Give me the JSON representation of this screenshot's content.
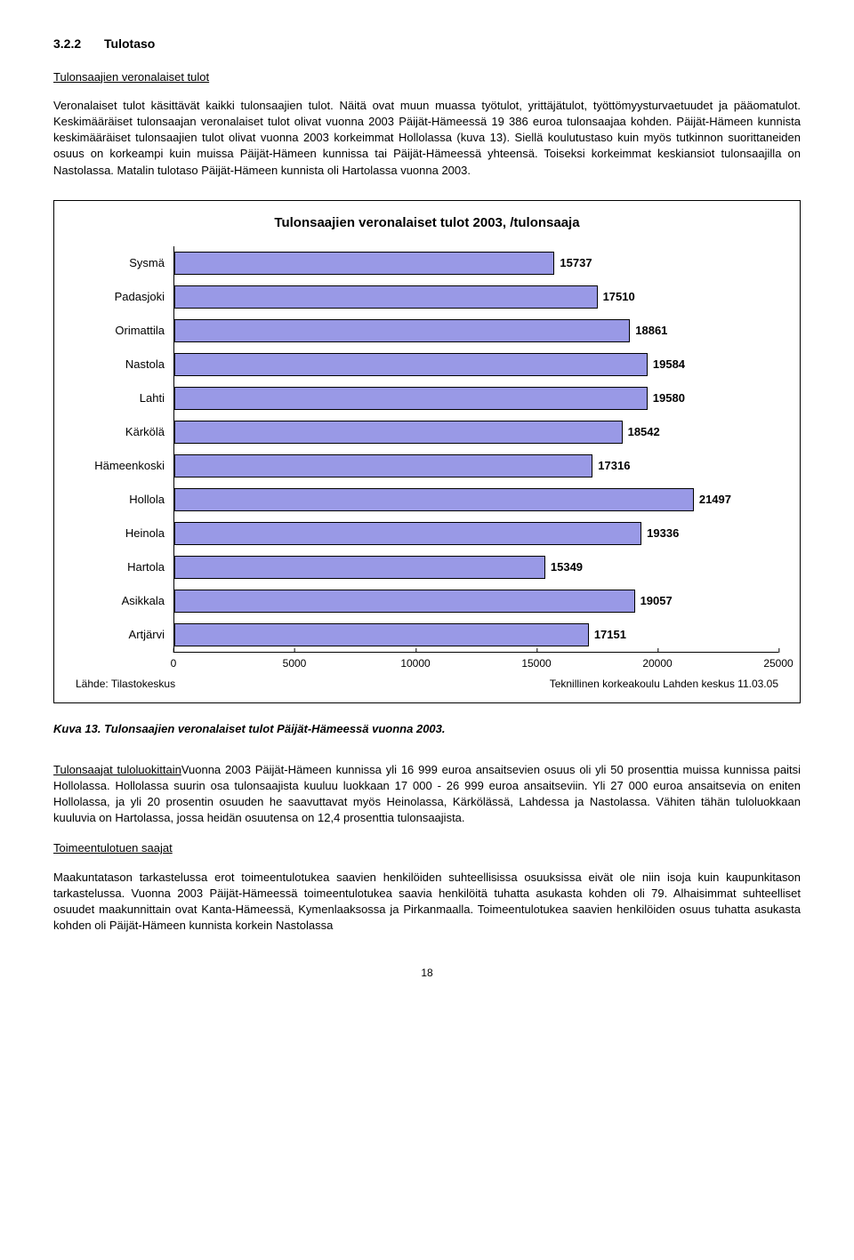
{
  "section": {
    "number": "3.2.2",
    "title": "Tulotaso"
  },
  "subheading1": "Tulonsaajien veronalaiset tulot",
  "para1": "Veronalaiset tulot käsittävät kaikki tulonsaajien tulot. Näitä ovat muun muassa työtulot, yrittäjätulot, työttömyysturvaetuudet ja pääomatulot. Keskimääräiset tulonsaajan veronalaiset tulot olivat vuonna 2003 Päijät-Hämeessä 19 386 euroa tulonsaajaa kohden. Päijät-Hämeen kunnista keskimääräiset tulonsaajien tulot olivat vuonna 2003 korkeimmat Hollolassa (kuva 13). Siellä koulutustaso kuin myös tutkinnon suorittaneiden osuus on korkeampi kuin muissa Päijät-Hämeen kunnissa tai Päijät-Hämeessä yhteensä. Toiseksi korkeimmat keskiansiot tulonsaajilla on Nastolassa. Matalin tulotaso Päijät-Hämeen kunnista oli Hartolassa vuonna 2003.",
  "chart": {
    "type": "bar",
    "title": "Tulonsaajien veronalaiset tulot 2003, /tulonsaaja",
    "bar_color": "#9999e6",
    "bar_border": "#000000",
    "background": "#ffffff",
    "xlim_max": 25000,
    "xtick_step": 5000,
    "xticks": [
      "0",
      "5000",
      "10000",
      "15000",
      "20000",
      "25000"
    ],
    "rows": [
      {
        "label": "Sysmä",
        "value": 15737
      },
      {
        "label": "Padasjoki",
        "value": 17510
      },
      {
        "label": "Orimattila",
        "value": 18861
      },
      {
        "label": "Nastola",
        "value": 19584
      },
      {
        "label": "Lahti",
        "value": 19580
      },
      {
        "label": "Kärkölä",
        "value": 18542
      },
      {
        "label": "Hämeenkoski",
        "value": 17316
      },
      {
        "label": "Hollola",
        "value": 21497
      },
      {
        "label": "Heinola",
        "value": 19336
      },
      {
        "label": "Hartola",
        "value": 15349
      },
      {
        "label": "Asikkala",
        "value": 19057
      },
      {
        "label": "Artjärvi",
        "value": 17151
      }
    ],
    "footer_left": "Lähde: Tilastokeskus",
    "footer_right": "Teknillinen korkeakoulu Lahden keskus 11.03.05"
  },
  "figure_caption": "Kuva 13. Tulonsaajien veronalaiset tulot Päijät-Hämeessä vuonna 2003.",
  "runin1": "Tulonsaajat tuloluokittain",
  "para2": "Vuonna 2003 Päijät-Hämeen kunnissa yli 16 999 euroa ansaitsevien osuus oli yli 50 prosenttia muissa kunnissa paitsi Hollolassa. Hollolassa suurin osa tulonsaajista kuuluu luokkaan 17 000 - 26 999 euroa ansaitseviin. Yli 27 000 euroa ansaitsevia on eniten Hollolassa, ja yli 20 prosentin osuuden he saavuttavat myös Heinolassa, Kärkölässä, Lahdessa ja Nastolassa. Vähiten tähän tuloluokkaan kuuluvia on Hartolassa, jossa heidän osuutensa on 12,4 prosenttia tulonsaajista.",
  "subheading2": "Toimeentulotuen saajat",
  "para3": "Maakuntatason tarkastelussa erot toimeentulotukea saavien henkilöiden suhteellisissa osuuksissa eivät ole niin isoja kuin kaupunkitason tarkastelussa. Vuonna 2003 Päijät-Hämeessä toimeentulotukea saavia henkilöitä tuhatta asukasta kohden oli 79. Alhaisimmat suhteelliset osuudet maakunnittain ovat Kanta-Hämeessä, Kymenlaaksossa ja Pirkanmaalla. Toimeentulotukea saavien henkilöiden osuus tuhatta asukasta kohden oli Päijät-Hämeen kunnista korkein Nastolassa",
  "pagenum": "18"
}
